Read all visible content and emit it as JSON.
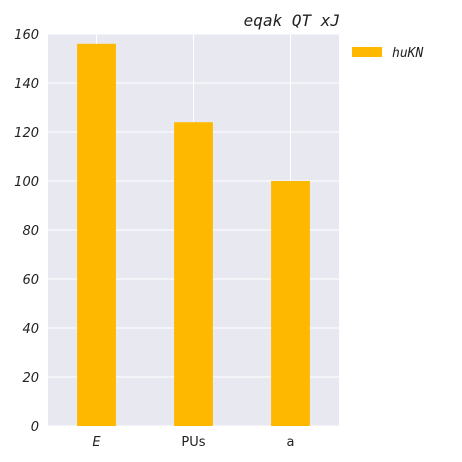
{
  "chart_data": {
    "type": "bar",
    "title": "eqak QT xJ",
    "categories": [
      "E",
      "PUs",
      "a"
    ],
    "series": [
      {
        "name": "huKN",
        "values": [
          156,
          124,
          100
        ]
      }
    ],
    "ylim": [
      0,
      160
    ],
    "yticks": [
      0,
      20,
      40,
      60,
      80,
      100,
      120,
      140,
      160
    ],
    "xlabel": "",
    "ylabel": "",
    "grid": true,
    "legend_position": "outside-top-right",
    "colors": {
      "bar": "#FFB800",
      "plot_background": "#E8E8F0",
      "grid": "#FFFFFF"
    }
  }
}
